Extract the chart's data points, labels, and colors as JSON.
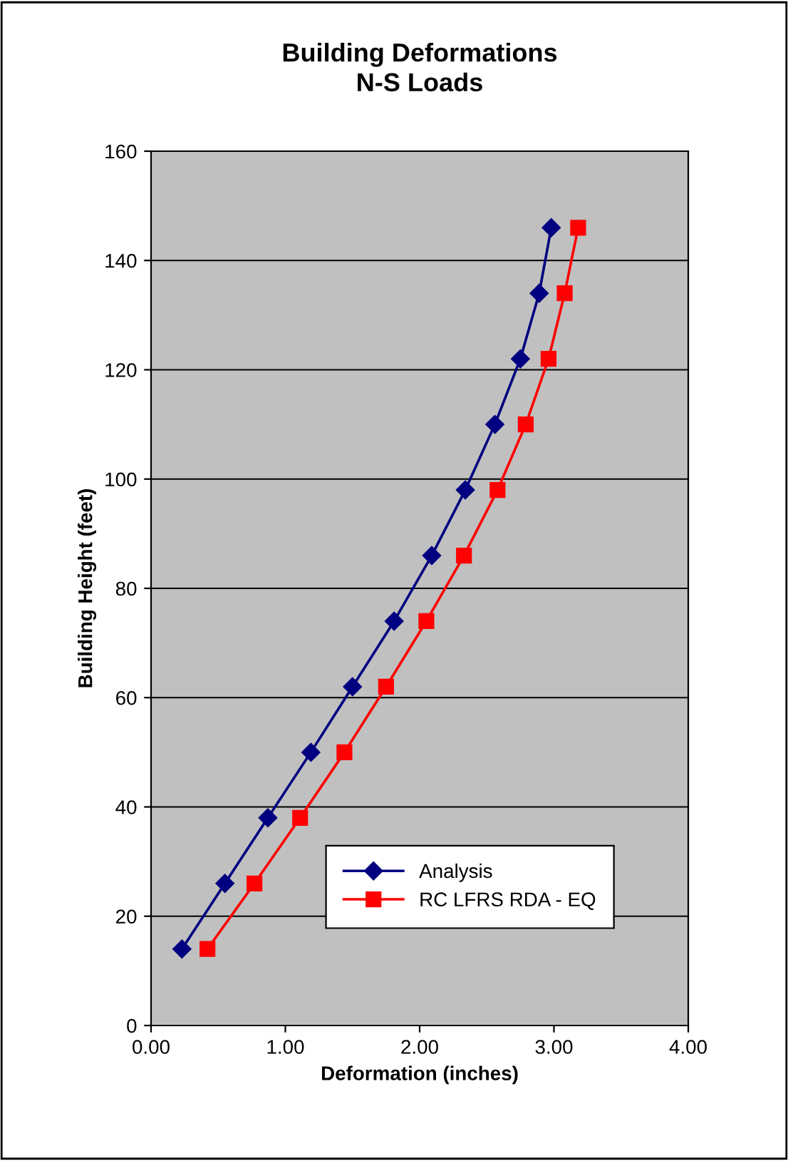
{
  "chart_data": {
    "type": "line",
    "title": "Building Deformations\nN-S Loads",
    "xlabel": "Deformation (inches)",
    "ylabel": "Building Height (feet)",
    "xlim": [
      0,
      4
    ],
    "xticks": [
      {
        "value": 0,
        "label": "0.00"
      },
      {
        "value": 1,
        "label": "1.00"
      },
      {
        "value": 2,
        "label": "2.00"
      },
      {
        "value": 3,
        "label": "3.00"
      },
      {
        "value": 4,
        "label": "4.00"
      }
    ],
    "ylim": [
      0,
      160
    ],
    "yticks": [
      0,
      20,
      40,
      60,
      80,
      100,
      120,
      140,
      160
    ],
    "grid": "y",
    "legend": "bottom right",
    "series": [
      {
        "name": "Analysis",
        "color": "#000080",
        "marker": "diamond",
        "x": [
          0.23,
          0.55,
          0.87,
          1.19,
          1.5,
          1.81,
          2.09,
          2.34,
          2.56,
          2.75,
          2.89,
          2.98
        ],
        "values": [
          14,
          26,
          38,
          50,
          62,
          74,
          86,
          98,
          110,
          122,
          134,
          146
        ]
      },
      {
        "name": "RC LFRS RDA - EQ",
        "color": "#ff0000",
        "marker": "square",
        "x": [
          0.42,
          0.77,
          1.11,
          1.44,
          1.75,
          2.05,
          2.33,
          2.58,
          2.79,
          2.96,
          3.08,
          3.18
        ],
        "values": [
          14,
          26,
          38,
          50,
          62,
          74,
          86,
          98,
          110,
          122,
          134,
          146
        ]
      }
    ]
  }
}
